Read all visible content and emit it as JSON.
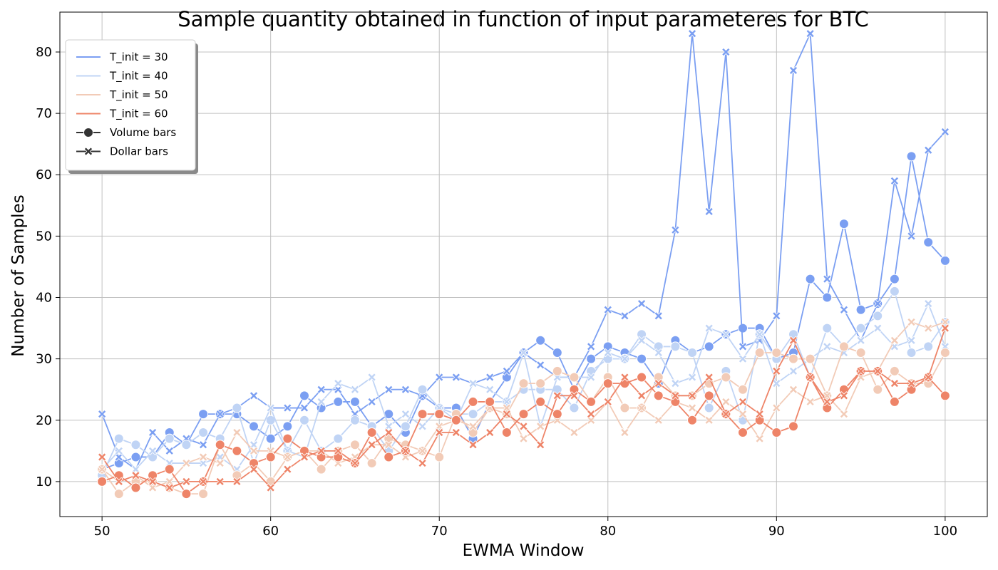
{
  "chart_data": {
    "type": "line",
    "title": "Sample quantity obtained in function of input parameteres for BTC",
    "xlabel": "EWMA Window",
    "ylabel": "Number of Samples",
    "xlim": [
      47.5,
      102.5
    ],
    "ylim": [
      4.3,
      86.5
    ],
    "xticks": [
      50,
      60,
      70,
      80,
      90,
      100
    ],
    "yticks": [
      10,
      20,
      30,
      40,
      50,
      60,
      70,
      80
    ],
    "grid": true,
    "legend_position": "upper-left",
    "legend": {
      "hue_entries": [
        {
          "label": "T_init = 30",
          "color": "#7b9ff2"
        },
        {
          "label": "T_init = 40",
          "color": "#c0d4f5"
        },
        {
          "label": "T_init = 50",
          "color": "#f2cbb7"
        },
        {
          "label": "T_init = 60",
          "color": "#ee8468"
        }
      ],
      "style_entries": [
        {
          "label": "Volume bars",
          "marker": "circle"
        },
        {
          "label": "Dollar bars",
          "marker": "x"
        }
      ]
    },
    "x": [
      50,
      51,
      52,
      53,
      54,
      55,
      56,
      57,
      58,
      59,
      60,
      61,
      62,
      63,
      64,
      65,
      66,
      67,
      68,
      69,
      70,
      71,
      72,
      73,
      74,
      75,
      76,
      77,
      78,
      79,
      80,
      81,
      82,
      83,
      84,
      85,
      86,
      87,
      88,
      89,
      90,
      91,
      92,
      93,
      94,
      95,
      96,
      97,
      98,
      99,
      100
    ],
    "series": [
      {
        "name": "T_init = 30, Volume bars",
        "color": "#7b9ff2",
        "marker": "circle",
        "values": [
          12,
          13,
          14,
          14,
          18,
          16,
          21,
          21,
          21,
          19,
          17,
          19,
          24,
          22,
          23,
          23,
          19,
          21,
          18,
          24,
          22,
          22,
          17,
          23,
          27,
          31,
          33,
          31,
          25,
          30,
          32,
          31,
          30,
          26,
          33,
          31,
          32,
          34,
          35,
          35,
          30,
          31,
          43,
          40,
          52,
          38,
          39,
          43,
          63,
          49,
          46
        ]
      },
      {
        "name": "T_init = 30, Dollar bars",
        "color": "#7b9ff2",
        "marker": "x",
        "values": [
          21,
          14,
          12,
          18,
          15,
          17,
          16,
          21,
          22,
          24,
          22,
          22,
          22,
          25,
          25,
          21,
          23,
          25,
          25,
          24,
          27,
          27,
          26,
          27,
          28,
          31,
          29,
          27,
          27,
          32,
          38,
          37,
          39,
          37,
          51,
          83,
          54,
          80,
          32,
          33,
          37,
          77,
          83,
          43,
          38,
          33,
          39,
          59,
          50,
          64,
          67
        ]
      },
      {
        "name": "T_init = 40, Volume bars",
        "color": "#c0d4f5",
        "marker": "circle",
        "values": [
          11,
          17,
          16,
          14,
          17,
          16,
          18,
          17,
          22,
          13,
          20,
          15,
          20,
          15,
          17,
          20,
          19,
          15,
          19,
          25,
          22,
          21,
          21,
          23,
          23,
          25,
          25,
          25,
          22,
          28,
          30,
          30,
          34,
          32,
          32,
          31,
          22,
          28,
          20,
          34,
          30,
          34,
          27,
          35,
          32,
          35,
          37,
          41,
          31,
          32,
          36
        ]
      },
      {
        "name": "T_init = 40, Dollar bars",
        "color": "#c0d4f5",
        "marker": "x",
        "values": [
          12,
          15,
          12,
          15,
          13,
          13,
          13,
          14,
          12,
          16,
          22,
          15,
          14,
          23,
          26,
          25,
          27,
          19,
          21,
          19,
          22,
          20,
          26,
          25,
          23,
          31,
          19,
          27,
          27,
          27,
          31,
          30,
          33,
          31,
          26,
          27,
          35,
          34,
          30,
          34,
          26,
          28,
          30,
          32,
          31,
          33,
          35,
          32,
          33,
          39,
          32
        ]
      },
      {
        "name": "T_init = 50, Volume bars",
        "color": "#f2cbb7",
        "marker": "circle",
        "values": [
          12,
          8,
          10,
          10,
          9,
          8,
          8,
          16,
          11,
          13,
          10,
          14,
          15,
          12,
          15,
          16,
          13,
          17,
          16,
          15,
          14,
          21,
          18,
          22,
          21,
          26,
          26,
          28,
          27,
          23,
          27,
          22,
          22,
          27,
          24,
          24,
          26,
          27,
          25,
          31,
          31,
          30,
          30,
          24,
          32,
          31,
          25,
          28,
          26,
          26,
          31
        ]
      },
      {
        "name": "T_init = 50, Dollar bars",
        "color": "#f2cbb7",
        "marker": "x",
        "values": [
          12,
          10,
          11,
          9,
          10,
          13,
          14,
          13,
          18,
          15,
          15,
          14,
          15,
          15,
          13,
          14,
          16,
          16,
          14,
          15,
          19,
          20,
          19,
          22,
          22,
          17,
          19,
          20,
          18,
          20,
          23,
          18,
          22,
          20,
          23,
          22,
          20,
          23,
          21,
          17,
          22,
          25,
          23,
          24,
          21,
          27,
          28,
          33,
          36,
          35,
          36
        ]
      },
      {
        "name": "T_init = 60, Volume bars",
        "color": "#ee8468",
        "marker": "circle",
        "values": [
          10,
          11,
          9,
          11,
          12,
          8,
          10,
          16,
          15,
          13,
          14,
          17,
          15,
          14,
          14,
          13,
          18,
          14,
          15,
          21,
          21,
          20,
          23,
          23,
          18,
          21,
          23,
          21,
          25,
          23,
          26,
          26,
          27,
          24,
          23,
          20,
          24,
          21,
          18,
          20,
          18,
          19,
          27,
          22,
          25,
          28,
          28,
          23,
          25,
          27,
          24
        ]
      },
      {
        "name": "T_init = 60, Dollar bars",
        "color": "#ee8468",
        "marker": "x",
        "values": [
          14,
          10,
          11,
          10,
          9,
          10,
          10,
          10,
          10,
          12,
          9,
          12,
          14,
          15,
          15,
          13,
          16,
          18,
          15,
          13,
          18,
          18,
          16,
          18,
          21,
          19,
          16,
          24,
          24,
          21,
          23,
          27,
          24,
          26,
          24,
          24,
          27,
          21,
          23,
          21,
          28,
          33,
          27,
          23,
          24,
          28,
          28,
          26,
          26,
          27,
          35
        ]
      }
    ]
  }
}
